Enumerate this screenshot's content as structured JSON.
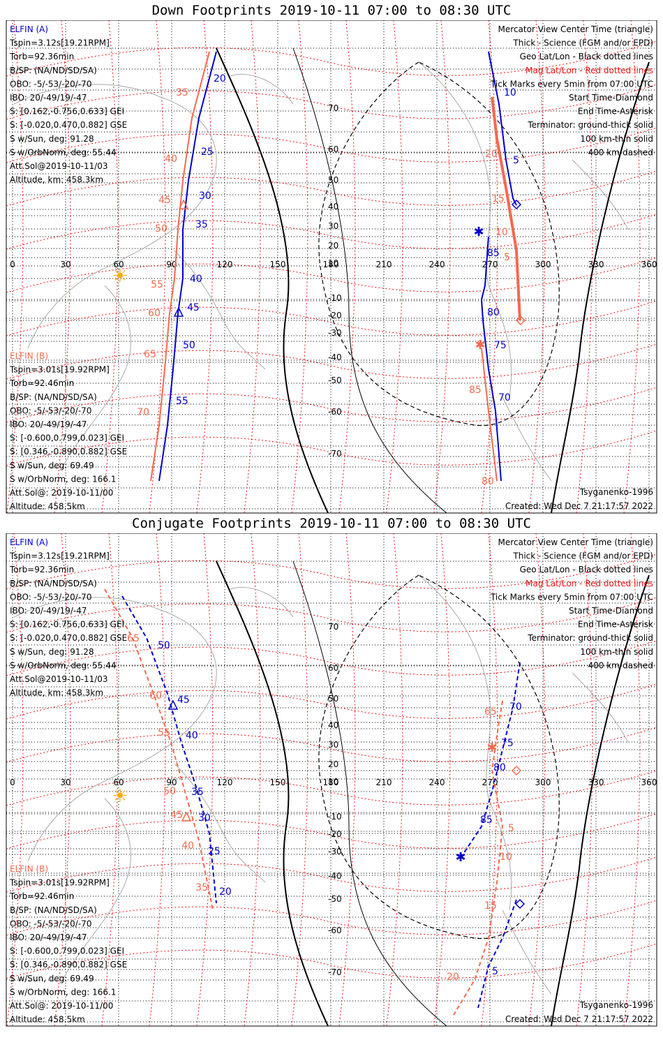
{
  "panels": [
    {
      "id": "top",
      "title": "Down Footprints 2019-10-11 07:00 to 08:30 UTC",
      "left_info_a": [
        {
          "text": "ELFIN (A)",
          "color": "#0000cc"
        },
        {
          "text": "Tspin=3.12s[19.21RPM]",
          "color": "#000000"
        },
        {
          "text": "Torb=92.36min",
          "color": "#000000"
        },
        {
          "text": "B/SP: (NA/ND/SD/SA)",
          "color": "#000000"
        },
        {
          "text": "OBO: -5/-53/-20/-70",
          "color": "#000000"
        },
        {
          "text": "IBO: 20/-49/19/-47",
          "color": "#000000"
        },
        {
          "text": "S: [0.162,-0.756,0.633] GEI",
          "color": "#000000"
        },
        {
          "text": "S: [-0.020,0.470,0.882] GSE",
          "color": "#000000"
        },
        {
          "text": "S w/Sun, deg: 91.28",
          "color": "#000000"
        },
        {
          "text": "S w/OrbNorm, deg: 55.44",
          "color": "#000000"
        },
        {
          "text": "Att.Sol@2019-10-11/03",
          "color": "#000000"
        },
        {
          "text": "Altitude, km: 458.3km",
          "color": "#000000"
        }
      ],
      "left_info_b": [
        {
          "text": "ELFIN (B)",
          "color": "#f26a4f"
        },
        {
          "text": "Tspin=3.01s[19.92RPM]",
          "color": "#000000"
        },
        {
          "text": "Torb=92.46min",
          "color": "#000000"
        },
        {
          "text": "B/SP: (NA/ND/SD/SA)",
          "color": "#000000"
        },
        {
          "text": "OBO: -5/-53/-20/-70",
          "color": "#000000"
        },
        {
          "text": "IBO: 20/-49/19/-47",
          "color": "#000000"
        },
        {
          "text": "S: [-0.600,0.799,0.023] GEI",
          "color": "#000000"
        },
        {
          "text": "S: [0.346,-0.890,0.882] GSE",
          "color": "#000000"
        },
        {
          "text": "S w/Sun, deg: 69.49",
          "color": "#000000"
        },
        {
          "text": "S w/OrbNorm, deg: 166.1",
          "color": "#000000"
        },
        {
          "text": "Att.Sol@: 2019-10-11/00",
          "color": "#000000"
        },
        {
          "text": "Altitude: 458.5km",
          "color": "#000000"
        }
      ],
      "legend": [
        {
          "text": "Mercator View Center Time (triangle)",
          "color": "#000000"
        },
        {
          "text": "Thick - Science (FGM and/or EPD)",
          "color": "#000000"
        },
        {
          "text": "Geo Lat/Lon - Black dotted lines",
          "color": "#000000"
        },
        {
          "text": "Mag Lat/Lon - Red dotted lines",
          "color": "#ee1111"
        },
        {
          "text": "Tick Marks every 5min from 07:00 UTC",
          "color": "#000000"
        },
        {
          "text": "Start Time-Diamond",
          "color": "#000000"
        },
        {
          "text": "End Time-Asterisk",
          "color": "#000000"
        },
        {
          "text": "Terminator: ground-thick solid",
          "color": "#000000"
        },
        {
          "text": "100 km-thin solid",
          "color": "#000000"
        },
        {
          "text": "400 km-dashed",
          "color": "#000000"
        }
      ],
      "credit": "Tsyganenko-1996",
      "created": "Created: Wed Dec  7 21:17:57 2022",
      "lon_labels": [
        "0",
        "30",
        "60",
        "90",
        "120",
        "150",
        "180",
        "210",
        "240",
        "270",
        "300",
        "330",
        "360"
      ],
      "lat_labels": [
        "70",
        "60",
        "50",
        "40",
        "30",
        "20",
        "10",
        "-10",
        "-20",
        "-30",
        "-40",
        "-50",
        "-60",
        "-70"
      ],
      "track_a_ticks_left": [
        "20",
        "25",
        "30",
        "35",
        "40",
        "45",
        "50",
        "55"
      ],
      "track_b_ticks_left": [
        "35",
        "40",
        "45",
        "50",
        "55",
        "60",
        "65",
        "70"
      ],
      "track_a_ticks_right": [
        "10",
        "5",
        "85",
        "80",
        "75",
        "70"
      ],
      "track_b_ticks_right": [
        "20",
        "15",
        "10",
        "5",
        "85",
        "80"
      ]
    },
    {
      "id": "bottom",
      "title": "Conjugate Footprints 2019-10-11 07:00 to 08:30 UTC",
      "left_info_a": [
        {
          "text": "ELFIN (A)",
          "color": "#0000cc"
        },
        {
          "text": "Tspin=3.12s[19.21RPM]",
          "color": "#000000"
        },
        {
          "text": "Torb=92.36min",
          "color": "#000000"
        },
        {
          "text": "B/SP: (NA/ND/SD/SA)",
          "color": "#000000"
        },
        {
          "text": "OBO: -5/-53/-20/-70",
          "color": "#000000"
        },
        {
          "text": "IBO: 20/-49/19/-47",
          "color": "#000000"
        },
        {
          "text": "S: [0.162,-0.756,0.633] GEI",
          "color": "#000000"
        },
        {
          "text": "S: [-0.020,0.470,0.882] GSE",
          "color": "#000000"
        },
        {
          "text": "S w/Sun, deg: 91.28",
          "color": "#000000"
        },
        {
          "text": "S w/OrbNorm, deg: 55.44",
          "color": "#000000"
        },
        {
          "text": "Att.Sol@2019-10-11/03",
          "color": "#000000"
        },
        {
          "text": "Altitude, km: 458.3km",
          "color": "#000000"
        }
      ],
      "left_info_b": [
        {
          "text": "ELFIN (B)",
          "color": "#f26a4f"
        },
        {
          "text": "Tspin=3.01s[19.92RPM]",
          "color": "#000000"
        },
        {
          "text": "Torb=92.46min",
          "color": "#000000"
        },
        {
          "text": "B/SP: (NA/ND/SD/SA)",
          "color": "#000000"
        },
        {
          "text": "OBO: -5/-53/-20/-70",
          "color": "#000000"
        },
        {
          "text": "IBO: 20/-49/19/-47",
          "color": "#000000"
        },
        {
          "text": "S: [-0.600,0.799,0.023] GEI",
          "color": "#000000"
        },
        {
          "text": "S: [0.346,-0.890,0.882] GSE",
          "color": "#000000"
        },
        {
          "text": "S w/Sun, deg: 69.49",
          "color": "#000000"
        },
        {
          "text": "S w/OrbNorm, deg: 166.1",
          "color": "#000000"
        },
        {
          "text": "Att.Sol@: 2019-10-11/00",
          "color": "#000000"
        },
        {
          "text": "Altitude: 458.5km",
          "color": "#000000"
        }
      ],
      "legend": [
        {
          "text": "Mercator View Center Time (triangle)",
          "color": "#000000"
        },
        {
          "text": "Thick - Science (FGM and/or EPD)",
          "color": "#000000"
        },
        {
          "text": "Geo Lat/Lon - Black dotted lines",
          "color": "#000000"
        },
        {
          "text": "Mag Lat/Lon - Red dotted lines",
          "color": "#ee1111"
        },
        {
          "text": "Tick Marks every 5min from 07:00 UTC",
          "color": "#000000"
        },
        {
          "text": "Start Time-Diamond",
          "color": "#000000"
        },
        {
          "text": "End Time-Asterisk",
          "color": "#000000"
        },
        {
          "text": "Terminator: ground-thick solid",
          "color": "#000000"
        },
        {
          "text": "100 km-thin solid",
          "color": "#000000"
        },
        {
          "text": "400 km-dashed",
          "color": "#000000"
        }
      ],
      "credit": "Tsyganenko-1996",
      "created": "Created: Wed Dec  7 21:17:57 2022",
      "lon_labels": [
        "0",
        "30",
        "60",
        "90",
        "120",
        "150",
        "180",
        "210",
        "240",
        "270",
        "300",
        "330",
        "360"
      ],
      "lat_labels": [
        "70",
        "60",
        "50",
        "40",
        "30",
        "20",
        "10",
        "-10",
        "-20",
        "-30",
        "-40",
        "-50",
        "-60",
        "-70"
      ],
      "track_a_ticks_left": [
        "50",
        "45",
        "40",
        "35",
        "30",
        "25",
        "20"
      ],
      "track_b_ticks_left": [
        "65",
        "60",
        "55",
        "50",
        "45",
        "40",
        "35"
      ],
      "track_a_ticks_right": [
        "70",
        "75",
        "80",
        "85",
        "5"
      ],
      "track_b_ticks_right": [
        "65",
        "5",
        "10",
        "15",
        "20"
      ]
    }
  ],
  "colors": {
    "elfin_a": "#0000cc",
    "elfin_b": "#f26a4f",
    "mag_grid": "#ee1111",
    "geo_grid": "#000000",
    "coast": "#aaaaaa",
    "sun": "#ffaa00"
  }
}
